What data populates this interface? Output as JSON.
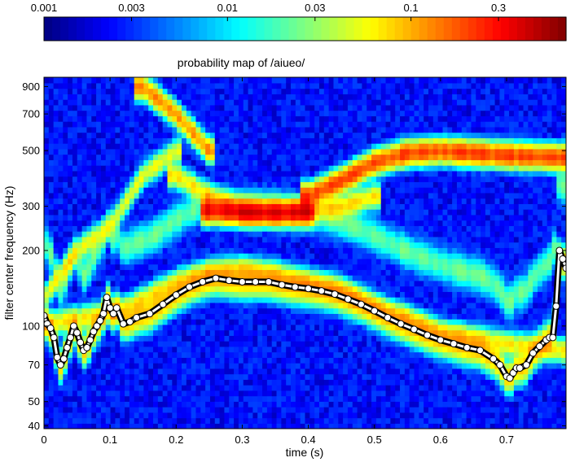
{
  "chart_data": {
    "type": "heatmap",
    "title": "probability map of /aiueo/",
    "xlabel": "time (s)",
    "ylabel": "filter center frequency (Hz)",
    "xlim": [
      0,
      0.79
    ],
    "ylim": [
      39,
      980
    ],
    "yscale": "log",
    "x_ticks": [
      "0",
      "0.1",
      "0.2",
      "0.3",
      "0.4",
      "0.5",
      "0.6",
      "0.7"
    ],
    "y_ticks": [
      "40",
      "50",
      "70",
      "100",
      "200",
      "300",
      "500",
      "700",
      "900"
    ],
    "colorbar": {
      "scale": "log",
      "range": [
        0.001,
        0.7
      ],
      "colormap": "jet",
      "tick_labels": [
        "0.001",
        "0.003",
        "0.01",
        "0.03",
        "0.1",
        "0.3"
      ]
    },
    "ridges": [
      {
        "t": [
          0.0,
          0.03,
          0.08,
          0.13,
          0.2,
          0.25,
          0.3,
          0.35,
          0.4,
          0.45,
          0.5,
          0.55,
          0.6,
          0.65,
          0.7,
          0.79
        ],
        "f": [
          100,
          105,
          110,
          120,
          150,
          165,
          170,
          162,
          150,
          140,
          120,
          108,
          95,
          90,
          85,
          80
        ],
        "level": 0.06
      },
      {
        "t": [
          0.2,
          0.25,
          0.3,
          0.35,
          0.4,
          0.45,
          0.5
        ],
        "f": [
          400,
          330,
          290,
          285,
          290,
          300,
          330
        ],
        "level": 0.07
      },
      {
        "t": [
          0.25,
          0.3,
          0.33,
          0.36,
          0.4
        ],
        "f": [
          290,
          285,
          284,
          284,
          286
        ],
        "level": 0.3
      },
      {
        "t": [
          0.4,
          0.45,
          0.5,
          0.55,
          0.6,
          0.65,
          0.7,
          0.79
        ],
        "f": [
          330,
          380,
          450,
          490,
          500,
          490,
          480,
          470
        ],
        "level": 0.2
      },
      {
        "t": [
          0.15,
          0.2,
          0.25
        ],
        "f": [
          900,
          700,
          500
        ],
        "level": 0.12
      },
      {
        "t": [
          0.0,
          0.05,
          0.1,
          0.15,
          0.2
        ],
        "f": [
          130,
          200,
          250,
          400,
          500
        ],
        "level": 0.05
      }
    ],
    "f0_track": {
      "t": [
        0.0,
        0.005,
        0.01,
        0.015,
        0.02,
        0.025,
        0.03,
        0.035,
        0.04,
        0.045,
        0.05,
        0.055,
        0.06,
        0.065,
        0.07,
        0.075,
        0.08,
        0.085,
        0.09,
        0.095,
        0.1,
        0.105,
        0.11,
        0.12,
        0.13,
        0.14,
        0.16,
        0.18,
        0.2,
        0.22,
        0.24,
        0.26,
        0.28,
        0.3,
        0.32,
        0.34,
        0.36,
        0.38,
        0.4,
        0.42,
        0.44,
        0.46,
        0.48,
        0.5,
        0.52,
        0.54,
        0.56,
        0.58,
        0.6,
        0.62,
        0.64,
        0.66,
        0.68,
        0.69,
        0.7,
        0.705,
        0.71,
        0.715,
        0.72,
        0.73,
        0.74,
        0.75,
        0.76,
        0.765,
        0.77,
        0.775,
        0.78,
        0.785,
        0.79
      ],
      "f": [
        110,
        102,
        98,
        90,
        75,
        70,
        74,
        82,
        90,
        100,
        94,
        86,
        80,
        82,
        88,
        95,
        100,
        105,
        112,
        130,
        118,
        112,
        118,
        102,
        104,
        108,
        112,
        122,
        133,
        143,
        150,
        155,
        152,
        150,
        150,
        150,
        146,
        143,
        141,
        138,
        134,
        128,
        122,
        115,
        108,
        102,
        97,
        92,
        88,
        85,
        82,
        80,
        74,
        70,
        63,
        62,
        65,
        68,
        68,
        70,
        78,
        83,
        88,
        90,
        90,
        120,
        200,
        185,
        170
      ]
    }
  }
}
